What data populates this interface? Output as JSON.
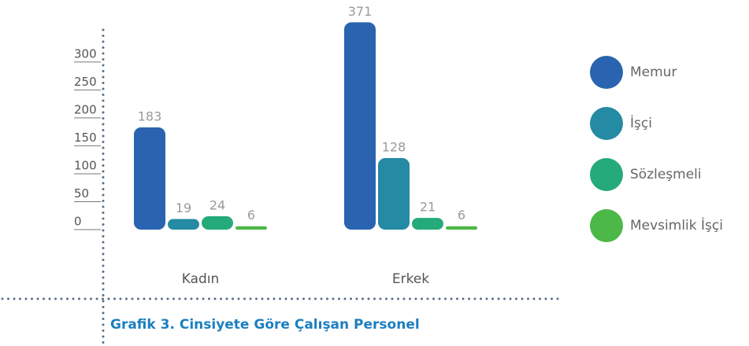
{
  "chart_data": {
    "type": "bar",
    "title": "Grafik 3. Cinsiyete Göre Çalışan Personel",
    "categories": [
      "Kadın",
      "Erkek"
    ],
    "series": [
      {
        "name": "Memur",
        "color": "#2a64b0",
        "values": [
          183,
          371
        ]
      },
      {
        "name": "İşçi",
        "color": "#258aa3",
        "values": [
          19,
          128
        ]
      },
      {
        "name": "Sözleşmeli",
        "color": "#25aa7a",
        "values": [
          24,
          21
        ]
      },
      {
        "name": "Mevsimlik İşçi",
        "color": "#4cb847",
        "values": [
          6,
          6
        ]
      }
    ],
    "ylim": [
      0,
      380
    ],
    "yticks": [
      0,
      50,
      100,
      150,
      200,
      250,
      300
    ],
    "legend": "right"
  }
}
